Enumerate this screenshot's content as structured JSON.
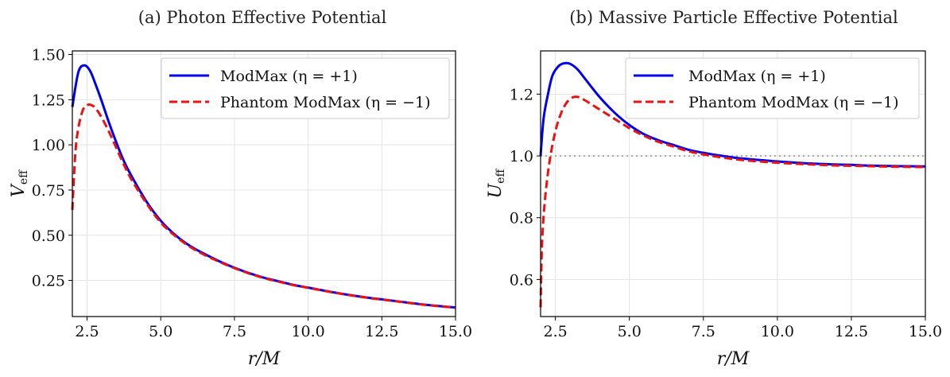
{
  "chart_data": [
    {
      "type": "line",
      "panel": "a",
      "title": "(a) Photon Effective Potential",
      "xlabel": "r/M",
      "ylabel_main": "V",
      "ylabel_sub": "eff",
      "xlim": [
        2.0,
        15.0
      ],
      "ylim": [
        0.05,
        1.52
      ],
      "xticks": [
        2.5,
        5.0,
        7.5,
        10.0,
        12.5,
        15.0
      ],
      "xtick_labels": [
        "2.5",
        "5.0",
        "7.5",
        "10.0",
        "12.5",
        "15.0"
      ],
      "yticks": [
        0.25,
        0.5,
        0.75,
        1.0,
        1.25,
        1.5
      ],
      "ytick_labels": [
        "0.25",
        "0.50",
        "0.75",
        "1.00",
        "1.25",
        "1.50"
      ],
      "grid": true,
      "legend_position": "top-right",
      "series": [
        {
          "name": "ModMax (η = +1)",
          "color": "#0000ee",
          "style": "solid",
          "x": [
            2.0,
            2.2,
            2.4,
            2.6,
            2.8,
            3.0,
            3.25,
            3.5,
            3.75,
            4.0,
            4.5,
            5.0,
            5.5,
            6.0,
            6.5,
            7.0,
            7.5,
            8.0,
            8.5,
            9.0,
            9.5,
            10.0,
            11.0,
            12.0,
            12.5,
            13.0,
            14.0,
            15.0
          ],
          "y": [
            1.21,
            1.4,
            1.44,
            1.41,
            1.33,
            1.24,
            1.12,
            1.01,
            0.91,
            0.83,
            0.69,
            0.58,
            0.5,
            0.44,
            0.395,
            0.355,
            0.32,
            0.29,
            0.265,
            0.245,
            0.225,
            0.21,
            0.18,
            0.155,
            0.145,
            0.135,
            0.115,
            0.1
          ]
        },
        {
          "name": "Phantom ModMax (η = −1)",
          "color": "#ee1111",
          "style": "dashed",
          "x": [
            2.0,
            2.1,
            2.2,
            2.35,
            2.5,
            2.65,
            2.8,
            3.0,
            3.25,
            3.5,
            3.75,
            4.0,
            4.5,
            5.0,
            5.5,
            6.0,
            6.5,
            7.0,
            7.5,
            8.0,
            8.5,
            9.0,
            9.5,
            10.0,
            11.0,
            12.0,
            12.5,
            13.0,
            14.0,
            15.0
          ],
          "y": [
            0.64,
            0.95,
            1.09,
            1.19,
            1.22,
            1.22,
            1.2,
            1.15,
            1.07,
            0.98,
            0.89,
            0.81,
            0.68,
            0.57,
            0.495,
            0.435,
            0.39,
            0.352,
            0.318,
            0.288,
            0.263,
            0.243,
            0.224,
            0.209,
            0.179,
            0.154,
            0.144,
            0.134,
            0.114,
            0.099
          ]
        }
      ]
    },
    {
      "type": "line",
      "panel": "b",
      "title": "(b) Massive Particle Effective Potential",
      "xlabel": "r/M",
      "ylabel_main": "U",
      "ylabel_sub": "eff",
      "xlim": [
        2.0,
        15.0
      ],
      "ylim": [
        0.48,
        1.34
      ],
      "xticks": [
        2.5,
        5.0,
        7.5,
        10.0,
        12.5,
        15.0
      ],
      "xtick_labels": [
        "2.5",
        "5.0",
        "7.5",
        "10.0",
        "12.5",
        "15.0"
      ],
      "yticks": [
        0.6,
        0.8,
        1.0,
        1.2
      ],
      "ytick_labels": [
        "0.6",
        "0.8",
        "1.0",
        "1.2"
      ],
      "grid": true,
      "legend_position": "top-right",
      "reference_line": {
        "y": 1.0,
        "color": "#aaaaaa",
        "style": "dotted"
      },
      "series": [
        {
          "name": "ModMax (η = +1)",
          "color": "#0000ee",
          "style": "solid",
          "x": [
            2.0,
            2.1,
            2.25,
            2.4,
            2.6,
            2.8,
            3.0,
            3.25,
            3.5,
            4.0,
            4.5,
            5.0,
            5.5,
            6.0,
            6.5,
            7.0,
            7.5,
            8.0,
            8.5,
            9.0,
            10.0,
            11.0,
            12.0,
            12.5,
            13.0,
            14.0,
            15.0
          ],
          "y": [
            1.0,
            1.12,
            1.2,
            1.26,
            1.29,
            1.3,
            1.298,
            1.28,
            1.25,
            1.19,
            1.14,
            1.1,
            1.07,
            1.05,
            1.035,
            1.02,
            1.01,
            1.002,
            0.995,
            0.99,
            0.982,
            0.976,
            0.972,
            0.971,
            0.969,
            0.967,
            0.966
          ]
        },
        {
          "name": "Phantom ModMax (η = −1)",
          "color": "#ee1111",
          "style": "dashed",
          "x": [
            2.0,
            2.05,
            2.15,
            2.3,
            2.5,
            2.7,
            2.9,
            3.1,
            3.3,
            3.5,
            4.0,
            4.5,
            5.0,
            5.5,
            6.0,
            6.5,
            7.0,
            7.5,
            8.0,
            8.5,
            9.0,
            10.0,
            11.0,
            12.0,
            12.5,
            13.0,
            14.0,
            15.0
          ],
          "y": [
            0.51,
            0.72,
            0.86,
            0.98,
            1.08,
            1.14,
            1.175,
            1.19,
            1.19,
            1.18,
            1.15,
            1.12,
            1.09,
            1.065,
            1.045,
            1.03,
            1.015,
            1.005,
            0.997,
            0.99,
            0.985,
            0.978,
            0.973,
            0.969,
            0.968,
            0.967,
            0.965,
            0.964
          ]
        }
      ]
    }
  ]
}
